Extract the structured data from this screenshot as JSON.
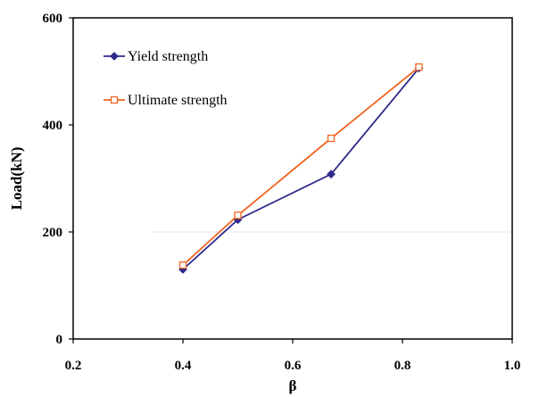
{
  "chart_data": {
    "type": "line",
    "xlabel": "β",
    "ylabel": "Load(kN)",
    "xlim": [
      0.2,
      1.0
    ],
    "ylim": [
      0,
      600
    ],
    "xticks": [
      "0.2",
      "0.4",
      "0.6",
      "0.8",
      "1.0"
    ],
    "yticks": [
      "0",
      "200",
      "400",
      "600"
    ],
    "grid": false,
    "legend_position": "top-left",
    "series": [
      {
        "name": "Yield strength",
        "color": "#2e2a8c",
        "marker": "diamond",
        "x": [
          0.4,
          0.5,
          0.67,
          0.83
        ],
        "y": [
          130,
          223,
          308,
          506
        ]
      },
      {
        "name": "Ultimate strength",
        "color": "#f26522",
        "marker": "square-open",
        "x": [
          0.4,
          0.5,
          0.67,
          0.83
        ],
        "y": [
          138,
          231,
          375,
          508
        ]
      }
    ]
  }
}
